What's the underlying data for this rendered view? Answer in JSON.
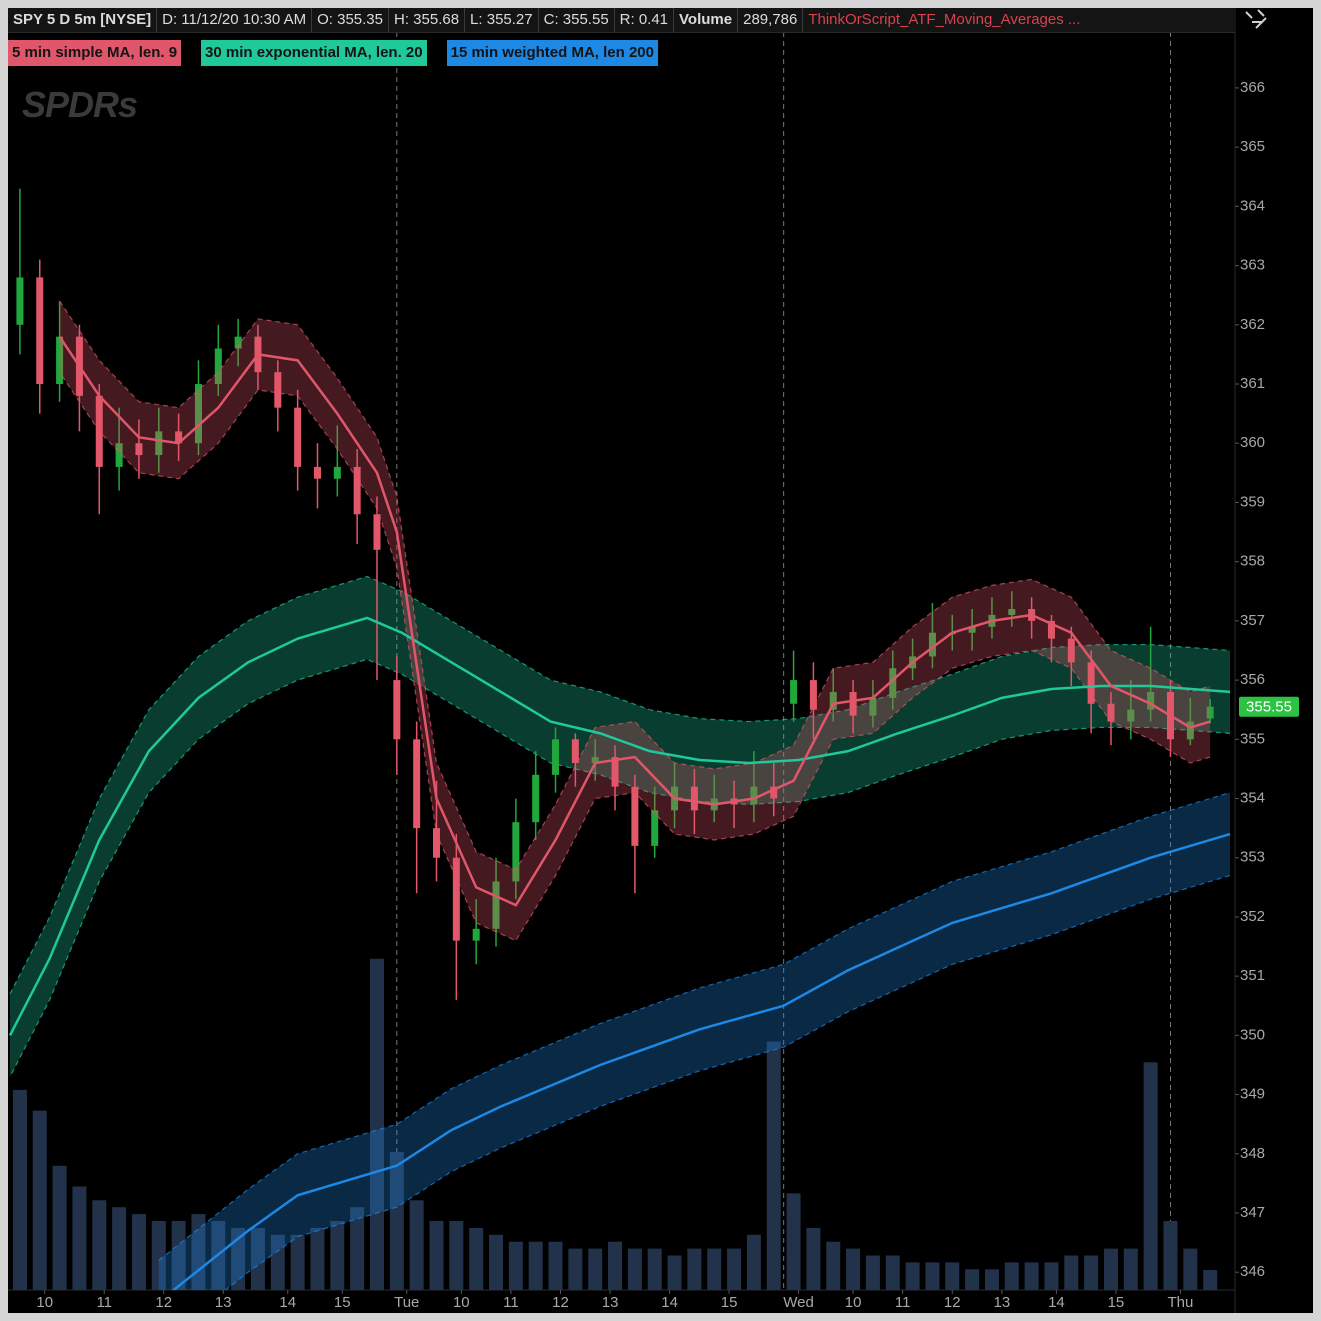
{
  "header": {
    "symbol": "SPY 5 D 5m [NYSE]",
    "date": "D: 11/12/20 10:30 AM",
    "open": "O: 355.35",
    "high": "H: 355.68",
    "low": "L: 355.27",
    "close": "C: 355.55",
    "range": "R: 0.41",
    "volume_label": "Volume",
    "volume": "289,786",
    "study": "ThinkOrScript_ATF_Moving_Averages ..."
  },
  "watermark": "SPDRs",
  "chart_data": {
    "type": "candlestick",
    "xlim": [
      0,
      246
    ],
    "ylim": [
      345.7,
      367.35
    ],
    "yticks": [
      346,
      347,
      348,
      349,
      350,
      351,
      352,
      353,
      354,
      355,
      356,
      357,
      358,
      359,
      360,
      361,
      362,
      363,
      364,
      365,
      366
    ],
    "xticks": [
      {
        "value": 7,
        "label": "10"
      },
      {
        "value": 19,
        "label": "11"
      },
      {
        "value": 31,
        "label": "12"
      },
      {
        "value": 43,
        "label": "13"
      },
      {
        "value": 56,
        "label": "14"
      },
      {
        "value": 67,
        "label": "15"
      },
      {
        "value": 80,
        "label": "Tue"
      },
      {
        "value": 91,
        "label": "10"
      },
      {
        "value": 101,
        "label": "11"
      },
      {
        "value": 111,
        "label": "12"
      },
      {
        "value": 121,
        "label": "13"
      },
      {
        "value": 133,
        "label": "14"
      },
      {
        "value": 145,
        "label": "15"
      },
      {
        "value": 159,
        "label": "Wed"
      },
      {
        "value": 170,
        "label": "10"
      },
      {
        "value": 180,
        "label": "11"
      },
      {
        "value": 190,
        "label": "12"
      },
      {
        "value": 200,
        "label": "13"
      },
      {
        "value": 211,
        "label": "14"
      },
      {
        "value": 223,
        "label": "15"
      },
      {
        "value": 236,
        "label": "Thu"
      }
    ],
    "day_breaks": [
      78,
      156,
      234
    ],
    "up_color": "#21a83c",
    "down_color": "#e2576a",
    "last_price_color": "#2ec243",
    "candles": {
      "x": [
        2,
        6,
        10,
        14,
        18,
        22,
        26,
        30,
        34,
        38,
        42,
        46,
        50,
        54,
        58,
        62,
        66,
        70,
        74,
        78,
        82,
        86,
        90,
        94,
        98,
        102,
        106,
        110,
        114,
        118,
        122,
        126,
        130,
        134,
        138,
        142,
        146,
        150,
        154,
        158,
        162,
        166,
        170,
        174,
        178,
        182,
        186,
        190,
        194,
        198,
        202,
        206,
        210,
        214,
        218,
        222,
        226,
        230,
        234,
        238,
        242
      ],
      "open": [
        362.0,
        362.8,
        361.0,
        361.8,
        360.8,
        359.6,
        360.0,
        359.8,
        360.2,
        360.0,
        361.0,
        361.6,
        361.8,
        361.2,
        360.6,
        359.6,
        359.4,
        359.6,
        358.8,
        356.0,
        355.0,
        353.5,
        353.0,
        351.6,
        351.8,
        352.6,
        353.6,
        354.4,
        355.0,
        354.6,
        354.7,
        354.2,
        353.2,
        353.8,
        354.2,
        353.8,
        354.0,
        353.9,
        354.2,
        355.6,
        356.0,
        355.5,
        355.8,
        355.4,
        355.7,
        356.2,
        356.4,
        356.8,
        356.8,
        356.9,
        357.1,
        357.2,
        357.0,
        356.7,
        356.3,
        355.6,
        355.3,
        355.5,
        355.8,
        355.0,
        355.35
      ],
      "high": [
        364.3,
        363.1,
        362.4,
        362.0,
        361.0,
        360.6,
        360.4,
        360.6,
        360.5,
        361.4,
        362.0,
        362.1,
        362.0,
        361.4,
        360.9,
        360.0,
        360.3,
        359.9,
        359.1,
        356.4,
        355.3,
        354.3,
        353.4,
        352.3,
        353.0,
        354.0,
        354.8,
        355.2,
        355.1,
        355.0,
        354.9,
        354.4,
        354.2,
        354.6,
        354.5,
        354.4,
        354.3,
        354.8,
        354.6,
        356.5,
        356.3,
        356.2,
        356.0,
        356.0,
        356.5,
        356.7,
        357.3,
        357.1,
        357.2,
        357.4,
        357.5,
        357.4,
        357.1,
        356.9,
        356.5,
        355.8,
        356.0,
        356.9,
        356.0,
        355.7,
        355.68
      ],
      "low": [
        361.5,
        360.5,
        360.7,
        360.2,
        358.8,
        359.2,
        359.4,
        359.5,
        359.7,
        359.8,
        360.8,
        361.3,
        360.9,
        360.2,
        359.2,
        358.9,
        359.1,
        358.3,
        356.0,
        354.4,
        352.4,
        352.6,
        350.6,
        351.2,
        351.5,
        352.3,
        353.3,
        354.1,
        354.2,
        354.3,
        353.8,
        352.4,
        353.0,
        353.5,
        353.4,
        353.6,
        353.5,
        353.6,
        353.7,
        355.3,
        355.0,
        355.3,
        355.1,
        355.2,
        355.5,
        356.0,
        356.2,
        356.5,
        356.5,
        356.7,
        356.9,
        356.7,
        356.3,
        355.9,
        355.1,
        354.9,
        355.0,
        355.3,
        354.7,
        354.9,
        355.27
      ],
      "close": [
        362.8,
        361.0,
        361.8,
        360.8,
        359.6,
        360.0,
        359.8,
        360.2,
        360.0,
        361.0,
        361.6,
        361.8,
        361.2,
        360.6,
        359.6,
        359.4,
        359.6,
        358.8,
        358.2,
        355.0,
        353.5,
        353.0,
        351.6,
        351.8,
        352.6,
        353.6,
        354.4,
        355.0,
        354.6,
        354.7,
        354.2,
        353.2,
        353.8,
        354.2,
        353.8,
        354.0,
        353.9,
        354.2,
        354.0,
        356.0,
        355.5,
        355.8,
        355.4,
        355.7,
        356.2,
        356.4,
        356.8,
        356.8,
        356.9,
        357.1,
        357.2,
        357.0,
        356.7,
        356.3,
        355.6,
        355.3,
        355.5,
        355.8,
        355.0,
        355.3,
        355.55
      ]
    },
    "volume": {
      "color": "#22324a",
      "ylim": [
        0,
        5000000
      ],
      "values": [
        2900000,
        2600000,
        1800000,
        1500000,
        1300000,
        1200000,
        1100000,
        1000000,
        1000000,
        1100000,
        1000000,
        900000,
        900000,
        800000,
        800000,
        900000,
        1000000,
        1200000,
        4800000,
        2000000,
        1300000,
        1000000,
        1000000,
        900000,
        800000,
        700000,
        700000,
        700000,
        600000,
        600000,
        700000,
        600000,
        600000,
        500000,
        600000,
        600000,
        600000,
        800000,
        3600000,
        1400000,
        900000,
        700000,
        600000,
        500000,
        500000,
        400000,
        400000,
        400000,
        300000,
        300000,
        400000,
        400000,
        400000,
        500000,
        500000,
        600000,
        600000,
        3300000,
        1000000,
        600000,
        289786
      ]
    },
    "series": [
      {
        "name": "15 min weighted MA, len 200",
        "color": "#1e88e5",
        "band": 0.7,
        "x": [
          30,
          48,
          58,
          78,
          89,
          99,
          119,
          139,
          156,
          169,
          190,
          210,
          230,
          246
        ],
        "values": [
          345.5,
          346.7,
          347.3,
          347.8,
          348.4,
          348.8,
          349.5,
          350.1,
          350.5,
          351.1,
          351.9,
          352.4,
          353.0,
          353.4
        ]
      },
      {
        "name": "30 min exponential MA, len. 20",
        "color": "#1fc99a",
        "band": 0.7,
        "x": [
          0,
          8,
          18,
          28,
          38,
          48,
          58,
          72,
          79,
          89,
          99,
          109,
          119,
          129,
          139,
          149,
          159,
          169,
          179,
          190,
          200,
          210,
          220,
          230,
          246
        ],
        "values": [
          350.0,
          351.3,
          353.3,
          354.8,
          355.7,
          356.3,
          356.7,
          357.05,
          356.8,
          356.3,
          355.8,
          355.3,
          355.1,
          354.8,
          354.65,
          354.6,
          354.65,
          354.8,
          355.1,
          355.4,
          355.7,
          355.85,
          355.9,
          355.9,
          355.8
        ]
      },
      {
        "name": "5 min simple MA, len. 9",
        "color": "#e0566a",
        "band": 0.6,
        "x": [
          10,
          18,
          26,
          34,
          42,
          50,
          58,
          66,
          74,
          78,
          86,
          94,
          102,
          110,
          118,
          126,
          134,
          142,
          150,
          158,
          166,
          174,
          182,
          190,
          198,
          206,
          214,
          222,
          230,
          238,
          242
        ],
        "values": [
          361.8,
          360.8,
          360.1,
          360.0,
          360.6,
          361.5,
          361.4,
          360.5,
          359.5,
          358.5,
          354.0,
          352.5,
          352.2,
          353.3,
          354.6,
          354.7,
          354.0,
          353.9,
          354.0,
          354.3,
          355.6,
          355.7,
          356.3,
          356.8,
          357.0,
          357.1,
          356.8,
          355.9,
          355.6,
          355.2,
          355.3
        ]
      }
    ]
  }
}
